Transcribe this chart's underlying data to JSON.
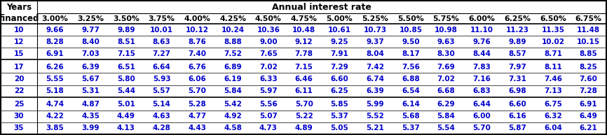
{
  "col_headers": [
    "3.00%",
    "3.25%",
    "3.50%",
    "3.75%",
    "4.00%",
    "4.25%",
    "4.50%",
    "4.75%",
    "5.00%",
    "5.25%",
    "5.50%",
    "5.75%",
    "6.00%",
    "6.25%",
    "6.50%",
    "6.75%"
  ],
  "row_headers": [
    "10",
    "12",
    "15",
    "17",
    "20",
    "22",
    "25",
    "30",
    "35"
  ],
  "table_data": [
    [
      9.66,
      9.77,
      9.89,
      10.01,
      10.12,
      10.24,
      10.36,
      10.48,
      10.61,
      10.73,
      10.85,
      10.98,
      11.1,
      11.23,
      11.35,
      11.48
    ],
    [
      8.28,
      8.4,
      8.51,
      8.63,
      8.76,
      8.88,
      9.0,
      9.12,
      9.25,
      9.37,
      9.5,
      9.63,
      9.76,
      9.89,
      10.02,
      10.15
    ],
    [
      6.91,
      7.03,
      7.15,
      7.27,
      7.4,
      7.52,
      7.65,
      7.78,
      7.91,
      8.04,
      8.17,
      8.3,
      8.44,
      8.57,
      8.71,
      8.85
    ],
    [
      6.26,
      6.39,
      6.51,
      6.64,
      6.76,
      6.89,
      7.02,
      7.15,
      7.29,
      7.42,
      7.56,
      7.69,
      7.83,
      7.97,
      8.11,
      8.25
    ],
    [
      5.55,
      5.67,
      5.8,
      5.93,
      6.06,
      6.19,
      6.33,
      6.46,
      6.6,
      6.74,
      6.88,
      7.02,
      7.16,
      7.31,
      7.46,
      7.6
    ],
    [
      5.18,
      5.31,
      5.44,
      5.57,
      5.7,
      5.84,
      5.97,
      6.11,
      6.25,
      6.39,
      6.54,
      6.68,
      6.83,
      6.98,
      7.13,
      7.28
    ],
    [
      4.74,
      4.87,
      5.01,
      5.14,
      5.28,
      5.42,
      5.56,
      5.7,
      5.85,
      5.99,
      6.14,
      6.29,
      6.44,
      6.6,
      6.75,
      6.91
    ],
    [
      4.22,
      4.35,
      4.49,
      4.63,
      4.77,
      4.92,
      5.07,
      5.22,
      5.37,
      5.52,
      5.68,
      5.84,
      6.0,
      6.16,
      6.32,
      6.49
    ],
    [
      3.85,
      3.99,
      4.13,
      4.28,
      4.43,
      4.58,
      4.73,
      4.89,
      5.05,
      5.21,
      5.37,
      5.54,
      5.7,
      5.87,
      6.04,
      6.21
    ]
  ],
  "title": "Annual interest rate",
  "row_label_line1": "Years",
  "row_label_line2": "financed",
  "group_separators_after": [
    2,
    5
  ],
  "data_text_color": "#0000cc",
  "header_text_color": "#000000",
  "row_header_text_color": "#0000cc",
  "fontsize_data": 7.5,
  "fontsize_header_title": 9.0,
  "fontsize_col_header": 7.8,
  "fontsize_row_label": 8.5
}
